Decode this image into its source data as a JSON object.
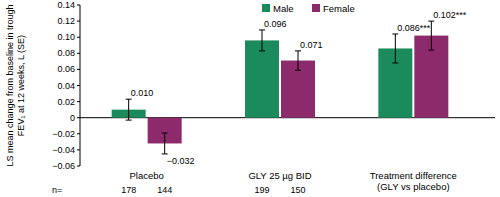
{
  "chart_data": {
    "type": "bar",
    "y_label": "LS mean change from baseline in trough FEV₁ at 12 weeks, L (SE)",
    "categories": [
      "Placebo",
      "GLY 25 µg BID",
      "Treatment difference (GLY vs placebo)"
    ],
    "series": [
      {
        "name": "Male",
        "color": "#1b8a5c",
        "values": [
          0.01,
          0.096,
          0.086
        ],
        "value_labels": [
          "0.010",
          "0.096",
          "0.086***"
        ],
        "errors": [
          0.013,
          0.013,
          0.018
        ],
        "n": [
          178,
          199,
          null
        ]
      },
      {
        "name": "Female",
        "color": "#8c2a6c",
        "values": [
          -0.032,
          0.071,
          0.102
        ],
        "value_labels": [
          "−0.032",
          "0.071",
          "0.102***"
        ],
        "errors": [
          0.013,
          0.012,
          0.018
        ],
        "n": [
          144,
          150,
          null
        ]
      }
    ],
    "n_label": "n=",
    "ylim": [
      -0.06,
      0.14
    ],
    "yticks": [
      {
        "value": -0.06,
        "label": "−0.06"
      },
      {
        "value": -0.04,
        "label": "−0.04"
      },
      {
        "value": -0.02,
        "label": "−0.02"
      },
      0,
      0.02,
      0.04,
      0.06,
      0.08,
      {
        "value": 0.1,
        "label": "0.10"
      },
      0.12,
      0.14
    ],
    "grid": false,
    "legend": "top",
    "data_labels": true
  }
}
